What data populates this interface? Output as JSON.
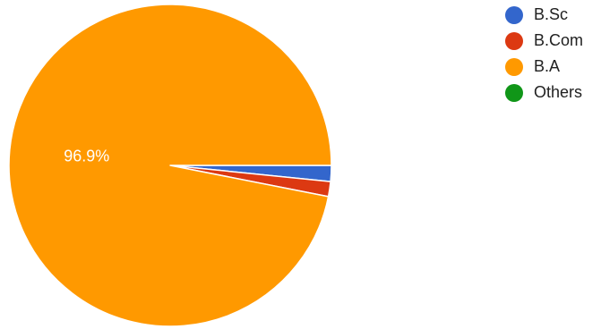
{
  "chart_data": {
    "type": "pie",
    "categories": [
      "B.Sc",
      "B.Com",
      "B.A",
      "Others"
    ],
    "values": [
      1.6,
      1.5,
      96.9,
      0
    ],
    "colors": [
      "#3366cc",
      "#dc3912",
      "#ff9900",
      "#109618"
    ],
    "data_labels": [
      "",
      "",
      "96.9%",
      ""
    ],
    "start_angle_deg": 90,
    "direction": "clockwise",
    "legend_position": "top-right"
  }
}
